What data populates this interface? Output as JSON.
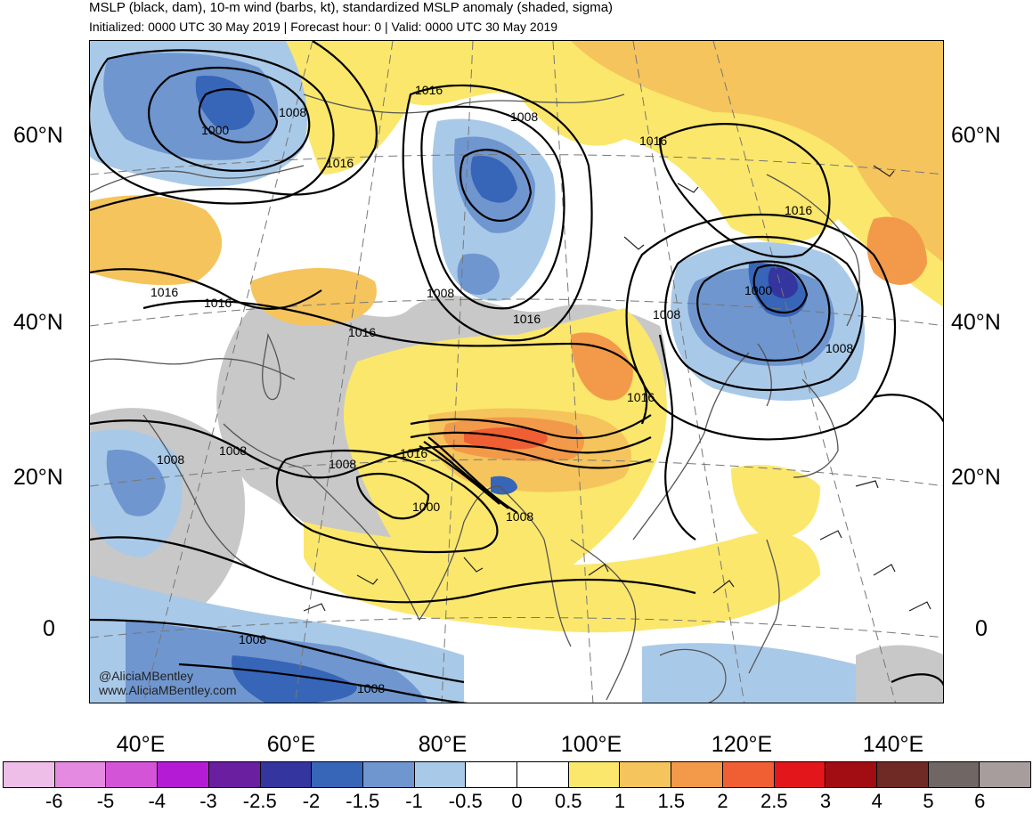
{
  "header": {
    "title": "MSLP (black, dam), 10-m wind (barbs, kt), standardized MSLP anomaly (shaded, sigma)",
    "subtitle": "Initialized: 0000 UTC 30 May 2019 | Forecast hour: 0 | Valid: 0000 UTC 30 May 2019"
  },
  "map": {
    "lat_labels": [
      "60°N",
      "40°N",
      "20°N",
      "0"
    ],
    "lon_labels": [
      "40°E",
      "60°E",
      "80°E",
      "100°E",
      "120°E",
      "140°E"
    ],
    "isobar_labels": [
      "1016",
      "1008",
      "1000",
      "1008",
      "1016",
      "1016",
      "1008",
      "1016",
      "1016",
      "1016",
      "1016",
      "1008",
      "1016",
      "1008",
      "1000",
      "1008",
      "1016",
      "1008",
      "1008",
      "1016",
      "1000",
      "1008",
      "1008",
      "1008"
    ],
    "credit_handle": "@AliciaMBentley",
    "credit_site": "www.AliciaMBentley.com"
  },
  "colorbar": {
    "colors": [
      "#eebee8",
      "#e48ae0",
      "#d454d8",
      "#b31cd4",
      "#6a1ea0",
      "#3535a0",
      "#3765b8",
      "#6f96cf",
      "#a9c9e8",
      "#ffffff",
      "#ffffff",
      "#fbe76b",
      "#f5c45c",
      "#f39a4a",
      "#ef5f33",
      "#e3161b",
      "#a10d12",
      "#6f2a25",
      "#706663",
      "#a79d9c"
    ],
    "labels": [
      "-6",
      "-5",
      "-4",
      "-3",
      "-2.5",
      "-2",
      "-1.5",
      "-1",
      "-0.5",
      "0",
      "0.5",
      "1",
      "1.5",
      "2",
      "2.5",
      "3",
      "4",
      "5",
      "6"
    ]
  }
}
